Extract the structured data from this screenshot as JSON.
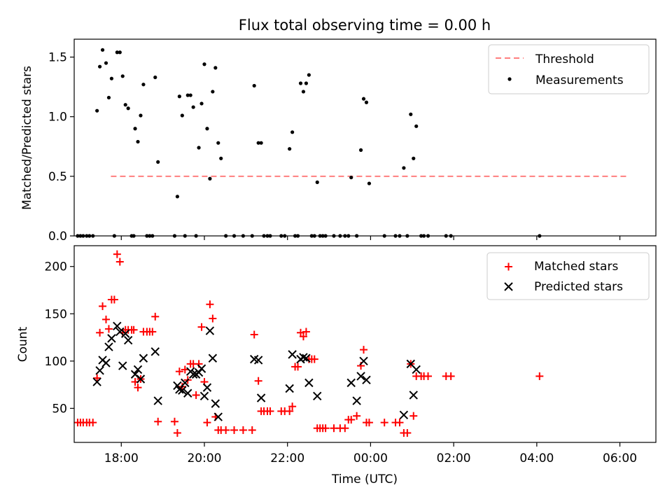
{
  "chart_data": [
    {
      "type": "scatter",
      "title": "Flux total observing time = 0.00 h",
      "xlabel": "",
      "ylabel": "Matched/Predicted stars",
      "ylim": [
        0,
        1.65
      ],
      "xlim": [
        "16:52",
        "06:52"
      ],
      "y_ticks": [
        "0.0",
        "0.5",
        "1.0",
        "1.5"
      ],
      "legend_position": "top-right",
      "series": [
        {
          "name": "Threshold",
          "kind": "dashed-line",
          "color": "#ff7f7f",
          "points": [
            [
              "17:45",
              0.5
            ],
            [
              "06:12",
              0.5
            ]
          ]
        },
        {
          "name": "Measurements",
          "kind": "dot",
          "color": "#000000",
          "points": [
            [
              "16:57",
              0
            ],
            [
              "17:01",
              0
            ],
            [
              "17:05",
              0
            ],
            [
              "17:10",
              0
            ],
            [
              "17:14",
              0
            ],
            [
              "17:19",
              0
            ],
            [
              "17:25",
              1.05
            ],
            [
              "17:29",
              1.42
            ],
            [
              "17:33",
              1.56
            ],
            [
              "17:38",
              1.45
            ],
            [
              "17:42",
              1.16
            ],
            [
              "17:46",
              1.32
            ],
            [
              "17:50",
              0
            ],
            [
              "17:54",
              1.54
            ],
            [
              "17:58",
              1.54
            ],
            [
              "18:02",
              1.34
            ],
            [
              "18:06",
              1.1
            ],
            [
              "18:10",
              1.07
            ],
            [
              "18:15",
              0
            ],
            [
              "18:18",
              0
            ],
            [
              "18:20",
              0.9
            ],
            [
              "18:24",
              0.79
            ],
            [
              "18:28",
              1.01
            ],
            [
              "18:32",
              1.27
            ],
            [
              "18:37",
              0
            ],
            [
              "18:41",
              0
            ],
            [
              "18:45",
              0
            ],
            [
              "18:49",
              1.33
            ],
            [
              "18:53",
              0.62
            ],
            [
              "19:17",
              0
            ],
            [
              "19:21",
              0.33
            ],
            [
              "19:24",
              1.17
            ],
            [
              "19:28",
              1.01
            ],
            [
              "19:32",
              0
            ],
            [
              "19:36",
              1.18
            ],
            [
              "19:40",
              1.18
            ],
            [
              "19:44",
              1.08
            ],
            [
              "19:48",
              0
            ],
            [
              "19:52",
              0.74
            ],
            [
              "19:56",
              1.11
            ],
            [
              "20:00",
              1.44
            ],
            [
              "20:04",
              0.9
            ],
            [
              "20:08",
              0.48
            ],
            [
              "20:12",
              1.21
            ],
            [
              "20:16",
              1.41
            ],
            [
              "20:20",
              0.78
            ],
            [
              "20:24",
              0.65
            ],
            [
              "20:31",
              0
            ],
            [
              "20:43",
              0
            ],
            [
              "20:56",
              0
            ],
            [
              "21:09",
              0
            ],
            [
              "21:12",
              1.26
            ],
            [
              "21:18",
              0.78
            ],
            [
              "21:22",
              0.78
            ],
            [
              "21:26",
              0
            ],
            [
              "21:31",
              0
            ],
            [
              "21:35",
              0
            ],
            [
              "21:51",
              0
            ],
            [
              "21:56",
              0
            ],
            [
              "22:03",
              0.73
            ],
            [
              "22:07",
              0.87
            ],
            [
              "22:11",
              0
            ],
            [
              "22:15",
              0
            ],
            [
              "22:19",
              1.28
            ],
            [
              "22:23",
              1.21
            ],
            [
              "22:27",
              1.28
            ],
            [
              "22:31",
              1.35
            ],
            [
              "22:35",
              0
            ],
            [
              "22:39",
              0
            ],
            [
              "22:43",
              0.45
            ],
            [
              "22:47",
              0
            ],
            [
              "22:51",
              0
            ],
            [
              "22:55",
              0
            ],
            [
              "23:07",
              0
            ],
            [
              "23:16",
              0
            ],
            [
              "23:23",
              0
            ],
            [
              "23:28",
              0
            ],
            [
              "23:32",
              0.49
            ],
            [
              "23:40",
              0
            ],
            [
              "23:46",
              0.72
            ],
            [
              "23:50",
              1.15
            ],
            [
              "23:54",
              1.12
            ],
            [
              "23:58",
              0.44
            ],
            [
              "00:20",
              0
            ],
            [
              "00:36",
              0
            ],
            [
              "00:42",
              0
            ],
            [
              "00:48",
              0.57
            ],
            [
              "00:53",
              0
            ],
            [
              "00:58",
              1.02
            ],
            [
              "01:02",
              0.65
            ],
            [
              "01:06",
              0.92
            ],
            [
              "01:13",
              0
            ],
            [
              "01:17",
              0
            ],
            [
              "01:23",
              0
            ],
            [
              "01:49",
              0
            ],
            [
              "01:56",
              0
            ],
            [
              "04:04",
              0
            ]
          ]
        }
      ]
    },
    {
      "type": "scatter",
      "title": "",
      "xlabel": "Time (UTC)",
      "ylabel": "Count",
      "ylim": [
        14,
        222
      ],
      "xlim": [
        "16:52",
        "06:52"
      ],
      "x_ticks": [
        "18:00",
        "20:00",
        "22:00",
        "00:00",
        "02:00",
        "04:00",
        "06:00"
      ],
      "y_ticks": [
        "50",
        "100",
        "150",
        "200"
      ],
      "legend_position": "top-right",
      "series": [
        {
          "name": "Matched stars",
          "kind": "plus",
          "color": "#ff0000",
          "points": [
            [
              "16:57",
              35
            ],
            [
              "17:01",
              35
            ],
            [
              "17:05",
              35
            ],
            [
              "17:10",
              35
            ],
            [
              "17:14",
              35
            ],
            [
              "17:19",
              35
            ],
            [
              "17:25",
              82
            ],
            [
              "17:29",
              130
            ],
            [
              "17:33",
              158
            ],
            [
              "17:38",
              144
            ],
            [
              "17:42",
              134
            ],
            [
              "17:46",
              165
            ],
            [
              "17:50",
              165
            ],
            [
              "17:54",
              213
            ],
            [
              "17:58",
              205
            ],
            [
              "18:02",
              130
            ],
            [
              "18:06",
              133
            ],
            [
              "18:10",
              133
            ],
            [
              "18:15",
              133
            ],
            [
              "18:18",
              133
            ],
            [
              "18:20",
              78
            ],
            [
              "18:24",
              72
            ],
            [
              "18:28",
              81
            ],
            [
              "18:32",
              131
            ],
            [
              "18:37",
              131
            ],
            [
              "18:41",
              131
            ],
            [
              "18:45",
              131
            ],
            [
              "18:49",
              147
            ],
            [
              "18:53",
              36
            ],
            [
              "19:17",
              36
            ],
            [
              "19:21",
              24
            ],
            [
              "19:24",
              89
            ],
            [
              "19:28",
              73
            ],
            [
              "19:32",
              91
            ],
            [
              "19:36",
              80
            ],
            [
              "19:40",
              97
            ],
            [
              "19:44",
              97
            ],
            [
              "19:48",
              64
            ],
            [
              "19:52",
              97
            ],
            [
              "19:56",
              136
            ],
            [
              "20:00",
              78
            ],
            [
              "20:04",
              35
            ],
            [
              "20:08",
              160
            ],
            [
              "20:12",
              145
            ],
            [
              "20:16",
              41
            ],
            [
              "20:20",
              27
            ],
            [
              "20:24",
              27
            ],
            [
              "20:31",
              27
            ],
            [
              "20:43",
              27
            ],
            [
              "20:56",
              27
            ],
            [
              "21:09",
              27
            ],
            [
              "21:12",
              128
            ],
            [
              "21:18",
              79
            ],
            [
              "21:22",
              47
            ],
            [
              "21:26",
              47
            ],
            [
              "21:31",
              47
            ],
            [
              "21:35",
              47
            ],
            [
              "21:51",
              47
            ],
            [
              "21:56",
              47
            ],
            [
              "22:03",
              47
            ],
            [
              "22:07",
              52
            ],
            [
              "22:11",
              94
            ],
            [
              "22:15",
              94
            ],
            [
              "22:19",
              130
            ],
            [
              "22:23",
              126
            ],
            [
              "22:27",
              131
            ],
            [
              "22:31",
              102
            ],
            [
              "22:35",
              102
            ],
            [
              "22:39",
              102
            ],
            [
              "22:43",
              29
            ],
            [
              "22:47",
              29
            ],
            [
              "22:51",
              29
            ],
            [
              "22:55",
              29
            ],
            [
              "23:07",
              29
            ],
            [
              "23:16",
              29
            ],
            [
              "23:23",
              29
            ],
            [
              "23:28",
              38
            ],
            [
              "23:32",
              38
            ],
            [
              "23:40",
              42
            ],
            [
              "23:46",
              95
            ],
            [
              "23:50",
              112
            ],
            [
              "23:54",
              35
            ],
            [
              "23:58",
              35
            ],
            [
              "00:20",
              35
            ],
            [
              "00:36",
              35
            ],
            [
              "00:42",
              35
            ],
            [
              "00:48",
              24
            ],
            [
              "00:53",
              24
            ],
            [
              "00:58",
              97
            ],
            [
              "01:02",
              42
            ],
            [
              "01:06",
              84
            ],
            [
              "01:13",
              84
            ],
            [
              "01:17",
              84
            ],
            [
              "01:23",
              84
            ],
            [
              "01:49",
              84
            ],
            [
              "01:56",
              84
            ],
            [
              "04:04",
              84
            ]
          ]
        },
        {
          "name": "Predicted stars",
          "kind": "x",
          "color": "#000000",
          "points": [
            [
              "17:25",
              78
            ],
            [
              "17:29",
              90
            ],
            [
              "17:33",
              101
            ],
            [
              "17:38",
              98
            ],
            [
              "17:42",
              115
            ],
            [
              "17:46",
              124
            ],
            [
              "17:54",
              137
            ],
            [
              "17:58",
              131
            ],
            [
              "18:02",
              95
            ],
            [
              "18:06",
              129
            ],
            [
              "18:10",
              122
            ],
            [
              "18:20",
              86
            ],
            [
              "18:24",
              91
            ],
            [
              "18:28",
              81
            ],
            [
              "18:32",
              103
            ],
            [
              "18:49",
              110
            ],
            [
              "18:53",
              58
            ],
            [
              "19:21",
              74
            ],
            [
              "19:24",
              70
            ],
            [
              "19:28",
              69
            ],
            [
              "19:32",
              77
            ],
            [
              "19:36",
              66
            ],
            [
              "19:40",
              89
            ],
            [
              "19:44",
              86
            ],
            [
              "19:48",
              86
            ],
            [
              "19:52",
              88
            ],
            [
              "19:56",
              92
            ],
            [
              "20:00",
              63
            ],
            [
              "20:04",
              72
            ],
            [
              "20:08",
              132
            ],
            [
              "20:12",
              103
            ],
            [
              "20:16",
              55
            ],
            [
              "20:20",
              41
            ],
            [
              "21:12",
              102
            ],
            [
              "21:18",
              101
            ],
            [
              "21:22",
              61
            ],
            [
              "22:03",
              71
            ],
            [
              "22:07",
              107
            ],
            [
              "22:19",
              102
            ],
            [
              "22:23",
              104
            ],
            [
              "22:27",
              103
            ],
            [
              "22:31",
              77
            ],
            [
              "22:43",
              63
            ],
            [
              "23:32",
              77
            ],
            [
              "23:40",
              58
            ],
            [
              "23:46",
              84
            ],
            [
              "23:50",
              100
            ],
            [
              "23:54",
              80
            ],
            [
              "00:48",
              43
            ],
            [
              "00:58",
              97
            ],
            [
              "01:02",
              64
            ],
            [
              "01:06",
              91
            ]
          ]
        }
      ]
    }
  ]
}
